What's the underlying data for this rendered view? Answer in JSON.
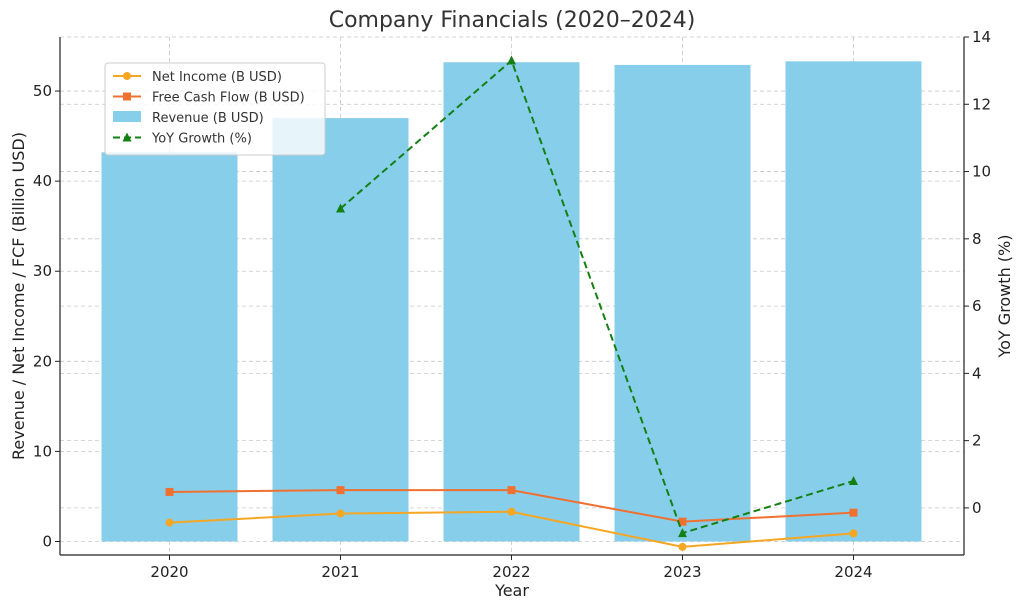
{
  "chart_data": {
    "type": "bar",
    "title": "Company Financials (2020–2024)",
    "xlabel": "Year",
    "ylabel": "Revenue / Net Income / FCF (Billion USD)",
    "y2label": "YoY Growth (%)",
    "categories": [
      "2020",
      "2021",
      "2022",
      "2023",
      "2024"
    ],
    "ylim": [
      -1.5,
      56
    ],
    "y2lim": [
      -1.4,
      14
    ],
    "yticks": [
      0,
      10,
      20,
      30,
      40,
      50
    ],
    "y2ticks": [
      0,
      2,
      4,
      6,
      8,
      10,
      12,
      14
    ],
    "grid": true,
    "legend_position": "top-left",
    "series": [
      {
        "name": "Revenue (B USD)",
        "kind": "bar",
        "axis": "left",
        "color": "#87ceeb",
        "values": [
          43.2,
          47.0,
          53.2,
          52.9,
          53.3
        ]
      },
      {
        "name": "Net Income (B USD)",
        "kind": "line",
        "marker": "circle",
        "axis": "left",
        "color": "#f5a623",
        "values": [
          2.1,
          3.1,
          3.3,
          -0.6,
          0.9
        ]
      },
      {
        "name": "Free Cash Flow (B USD)",
        "kind": "line",
        "marker": "square",
        "axis": "left",
        "color": "#f07030",
        "values": [
          5.5,
          5.7,
          5.7,
          2.2,
          3.2
        ]
      },
      {
        "name": "YoY Growth (%)",
        "kind": "line",
        "marker": "triangle",
        "dashed": true,
        "axis": "right",
        "color": "#138013",
        "values": [
          null,
          8.9,
          13.3,
          -0.75,
          0.8
        ]
      }
    ],
    "legend_order": [
      "Net Income (B USD)",
      "Free Cash Flow (B USD)",
      "Revenue (B USD)",
      "YoY Growth (%)"
    ]
  }
}
